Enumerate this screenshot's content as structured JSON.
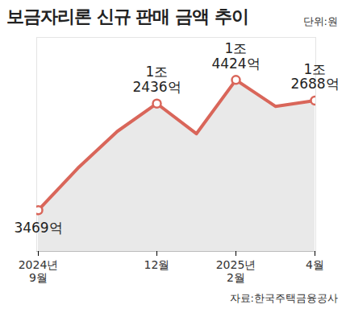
{
  "chart_data": {
    "type": "line",
    "title": "보금자리론 신규 판매 금액 추이",
    "annotations": [
      "단위:원",
      "자료:한국주택금융공사"
    ],
    "categories": [
      "2024년\n9월",
      null,
      null,
      "12월",
      null,
      "2025년\n2월",
      null,
      "4월"
    ],
    "values": [
      3469,
      7000,
      10100,
      12436,
      9900,
      14424,
      12200,
      12688
    ],
    "value_labels": [
      "3469억",
      null,
      null,
      "1조\n2436억",
      null,
      "1조\n4424억",
      null,
      "1조\n2688억"
    ],
    "data_labels": true,
    "color": "#d9665a",
    "marker": "circle",
    "ylim": [
      0,
      18000
    ],
    "tick_labels": "x"
  }
}
